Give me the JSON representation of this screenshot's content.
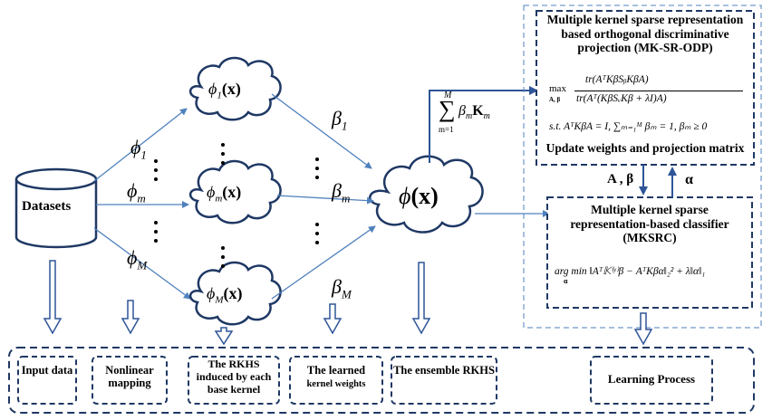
{
  "datasets_label": "Datasets",
  "phi_maps": {
    "phi_1": "ϕ",
    "phi_1_sub": "1",
    "phi_m": "ϕ",
    "phi_m_sub": "m",
    "phi_M": "ϕ",
    "phi_M_sub": "M"
  },
  "clouds": {
    "c1": "ϕ₁(x)",
    "cm": "ϕₘ(x)",
    "cM": "ϕₘ(x)",
    "ensemble": "ϕ(x)"
  },
  "cloud_text": {
    "c1_phi": "ϕ",
    "c1_sub": "1",
    "cm_phi": "ϕ",
    "cm_sub": "m",
    "cM_phi": "ϕ",
    "cM_sub": "M",
    "x": "(x)",
    "ens_phi": "ϕ",
    "ens_x": "(x)"
  },
  "betas": {
    "b1": "β",
    "b1_sub": "1",
    "bm": "β",
    "bm_sub": "m",
    "bM": "β",
    "bM_sub": "M"
  },
  "sum_formula": {
    "top": "M",
    "sigma": "∑",
    "bottom": "m=1",
    "body": "β",
    "body_sub": "m",
    "K": "K",
    "K_sub": "m"
  },
  "mk_sr_odp": {
    "title": "Multiple kernel sparse representation based orthogonal discriminative projection (MK-SR-ODP)",
    "max": "max",
    "max_sub": "A, β",
    "numerator": "tr(AᵀKβSᵦKβA)",
    "denominator": "tr(Aᵀ(KβSᵥKβ + λI)A)",
    "constraint": "s.t. AᵀKβA = I, ∑ₘ₌₁ᴹ βₘ = 1, βₘ ≥ 0",
    "update": "Update weights and projection matrix"
  },
  "arrow_labels": {
    "a_beta": "A , β",
    "alpha": "α"
  },
  "mksrc": {
    "title": "Multiple kernel sparse representation-based classifier (MKSRC)",
    "formula": "arg min ‖Aᵀ𝕂⁽ʸ⁾β − AᵀKβα‖₂² + λ‖α‖₁",
    "argmin_sub": "α"
  },
  "bottom_boxes": [
    {
      "label": "Input data"
    },
    {
      "label": "Nonlinear mapping"
    },
    {
      "label": "The RKHS induced by each base kernel"
    },
    {
      "label_main": "The learned",
      "label_sub": "kernel weights"
    },
    {
      "label": "The ensemble RKHS"
    },
    {
      "label": "Learning Process"
    }
  ],
  "colors": {
    "arrow_blue": "#4f81bd",
    "box_border": "#1f3864",
    "dash_blue": "#2e5597"
  }
}
